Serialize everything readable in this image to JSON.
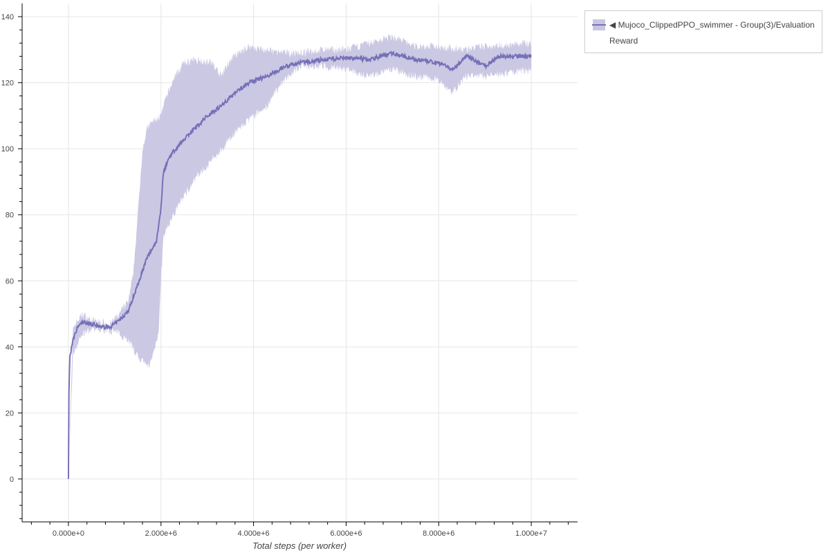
{
  "chart_data": {
    "type": "line",
    "title": "",
    "xlabel": "Total steps (per worker)",
    "ylabel": "",
    "xlim": [
      -1000000,
      11000000
    ],
    "ylim": [
      -13,
      144
    ],
    "x_ticks": [
      0,
      2000000,
      4000000,
      6000000,
      8000000,
      10000000
    ],
    "x_tick_labels": [
      "0.000e+0",
      "2.000e+6",
      "4.000e+6",
      "6.000e+6",
      "8.000e+6",
      "1.000e+7"
    ],
    "y_ticks": [
      0,
      20,
      40,
      60,
      80,
      100,
      120,
      140
    ],
    "y_tick_labels": [
      "0",
      "20",
      "40",
      "60",
      "80",
      "100",
      "120",
      "140"
    ],
    "grid": true,
    "legend_position": "outside-top-right",
    "series": [
      {
        "name": "Mujoco_ClippedPPO_swimmer - Group(3)/Evaluation Reward",
        "color": "#7670b8",
        "band_color": "#c8c5e1",
        "mean": {
          "x": [
            0,
            10000,
            30000,
            100000,
            200000,
            300000,
            500000,
            700000,
            900000,
            1100000,
            1300000,
            1500000,
            1600000,
            1700000,
            1900000,
            2000000,
            2050000,
            2200000,
            2500000,
            2800000,
            3000000,
            3300000,
            3600000,
            3900000,
            4300000,
            4700000,
            5000000,
            5500000,
            6000000,
            6500000,
            7000000,
            7500000,
            8000000,
            8300000,
            8600000,
            9000000,
            9300000,
            9600000,
            10000000
          ],
          "y": [
            0,
            25,
            37,
            42,
            46,
            47.5,
            47,
            46,
            46,
            48,
            51,
            59,
            63,
            67,
            72,
            82,
            93,
            98,
            103,
            107,
            110,
            113,
            117,
            120,
            122,
            125,
            126,
            127,
            127.5,
            127,
            129,
            127,
            126,
            124,
            128,
            125,
            128,
            128,
            128
          ]
        },
        "upper": {
          "x": [
            0,
            100000,
            300000,
            500000,
            900000,
            1100000,
            1300000,
            1400000,
            1500000,
            1600000,
            1700000,
            1800000,
            2000000,
            2100000,
            2300000,
            2500000,
            2800000,
            3100000,
            3300000,
            3500000,
            3900000,
            4200000,
            4600000,
            5000000,
            5500000,
            6000000,
            7000000,
            7500000,
            8000000,
            8500000,
            9000000,
            10000000
          ],
          "y": [
            0,
            46,
            50,
            48,
            47,
            50,
            54,
            62,
            80,
            100,
            106,
            108,
            110,
            115,
            122,
            126,
            127,
            126,
            122,
            127,
            131,
            130,
            129,
            129,
            130,
            130,
            134,
            131,
            131,
            130,
            131,
            132
          ]
        },
        "lower": {
          "x": [
            0,
            100000,
            300000,
            500000,
            900000,
            1100000,
            1300000,
            1500000,
            1700000,
            1800000,
            1950000,
            2000000,
            2050000,
            2200000,
            2500000,
            2800000,
            3200000,
            3600000,
            4000000,
            4300000,
            4600000,
            5000000,
            5500000,
            6000000,
            6500000,
            7000000,
            7500000,
            8000000,
            8300000,
            8600000,
            9000000,
            10000000
          ],
          "y": [
            0,
            38,
            44,
            45,
            45,
            44,
            42,
            37,
            34,
            36,
            45,
            60,
            73,
            78,
            86,
            92,
            98,
            105,
            110,
            113,
            120,
            125,
            125,
            124,
            122,
            124,
            122,
            121,
            117,
            122,
            122,
            124
          ]
        }
      }
    ]
  },
  "legend": {
    "marker": "◀",
    "line1": "Mujoco_ClippedPPO_swimmer - Group(3)/Evaluation",
    "line2": "Reward"
  }
}
